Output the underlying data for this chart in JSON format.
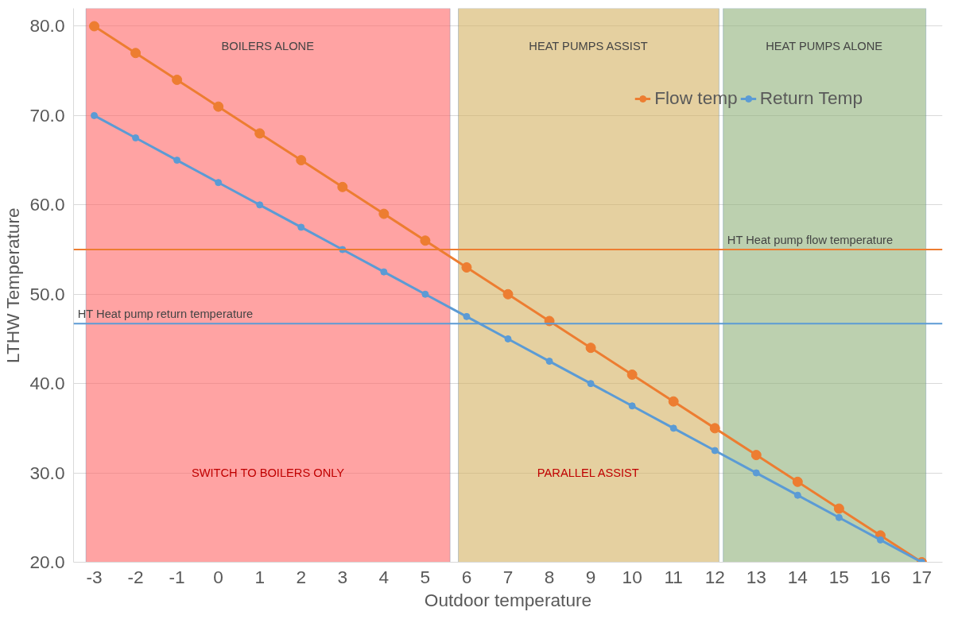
{
  "chart_data": {
    "type": "line",
    "xlabel": "Outdoor temperature",
    "ylabel": "LTHW Temperature",
    "x": [
      -3,
      -2,
      -1,
      0,
      1,
      2,
      3,
      4,
      5,
      6,
      7,
      8,
      9,
      10,
      11,
      12,
      13,
      14,
      15,
      16,
      17
    ],
    "series": [
      {
        "name": "Flow temp",
        "color": "#ed7d31",
        "values": [
          80,
          77,
          74,
          71,
          68,
          65,
          62,
          59,
          56,
          53,
          50,
          47,
          44,
          41,
          38,
          35,
          32,
          29,
          26,
          23,
          20
        ]
      },
      {
        "name": "Return Temp",
        "color": "#5b9bd5",
        "values": [
          70,
          67.5,
          65,
          62.5,
          60,
          57.5,
          55,
          52.5,
          50,
          47.5,
          45,
          42.5,
          40,
          37.5,
          35,
          32.5,
          30,
          27.5,
          25,
          22.5,
          20
        ]
      }
    ],
    "xlim": [
      -3.5,
      17.5
    ],
    "xticks": [
      -3,
      -2,
      -1,
      0,
      1,
      2,
      3,
      4,
      5,
      6,
      7,
      8,
      9,
      10,
      11,
      12,
      13,
      14,
      15,
      16,
      17
    ],
    "ylim": [
      20,
      82
    ],
    "yticks": [
      {
        "value": 20,
        "label": "20.0"
      },
      {
        "value": 30,
        "label": "30.0"
      },
      {
        "value": 40,
        "label": "40.0"
      },
      {
        "value": 50,
        "label": "50.0"
      },
      {
        "value": 60,
        "label": "60.0"
      },
      {
        "value": 70,
        "label": "70.0"
      },
      {
        "value": 80,
        "label": "80.0"
      }
    ],
    "grid": "y",
    "legend": "top right",
    "marker": "circle",
    "line_style": "solid",
    "bands": [
      {
        "axis": "x",
        "from": -3.2,
        "to": 5.6,
        "label": "BOILERS ALONE",
        "color": "#ff6666"
      },
      {
        "axis": "x",
        "from": 5.8,
        "to": 12.1,
        "label": "HEAT PUMPS ASSIST",
        "color": "#d4b060"
      },
      {
        "axis": "x",
        "from": 12.2,
        "to": 17.1,
        "label": "HEAT PUMPS ALONE",
        "color": "#8fb07a"
      }
    ],
    "ref_lines": [
      {
        "axis": "y",
        "value": 55,
        "label": "HT Heat pump flow temperature",
        "color": "#ed7d31"
      },
      {
        "axis": "y",
        "value": 46.7,
        "label": "HT Heat pump return temperature",
        "color": "#5b9bd5"
      }
    ],
    "annotations": [
      "SWITCH TO BOILERS ONLY",
      "PARALLEL ASSIST"
    ]
  }
}
